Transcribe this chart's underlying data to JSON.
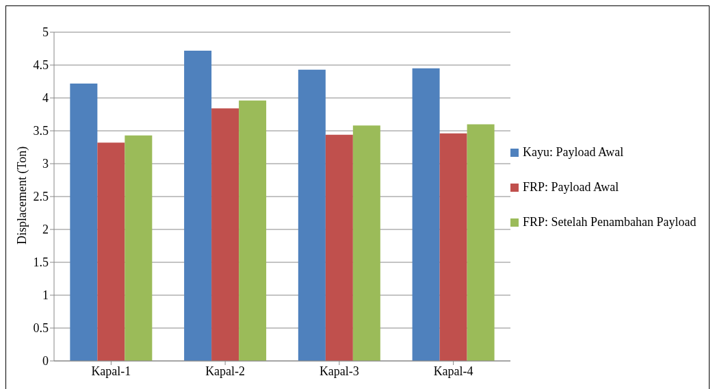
{
  "chart_data": {
    "type": "bar",
    "ylabel": "Displacement (Ton)",
    "categories": [
      "Kapal-1",
      "Kapal-2",
      "Kapal-3",
      "Kapal-4"
    ],
    "series": [
      {
        "name": "Kayu: Payload Awal",
        "color": "#4f81bd",
        "values": [
          4.22,
          4.72,
          4.43,
          4.45
        ]
      },
      {
        "name": "FRP: Payload Awal",
        "color": "#c0504d",
        "values": [
          3.32,
          3.84,
          3.44,
          3.46
        ]
      },
      {
        "name": "FRP: Setelah Penambahan Payload",
        "color": "#9bbb59",
        "values": [
          3.43,
          3.96,
          3.58,
          3.6
        ]
      }
    ],
    "ylim": [
      0,
      5
    ],
    "yticks": [
      0,
      0.5,
      1,
      1.5,
      2,
      2.5,
      3,
      3.5,
      4,
      4.5,
      5
    ],
    "grid": "y",
    "legend": "right"
  }
}
